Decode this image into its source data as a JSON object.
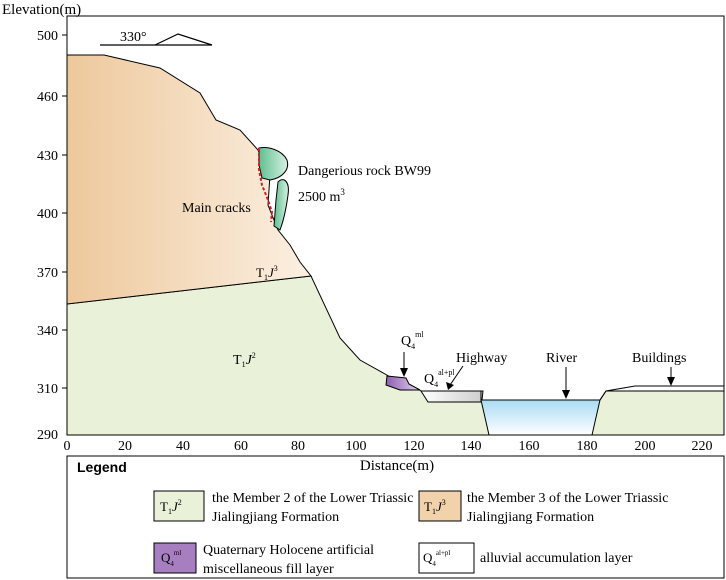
{
  "y_axis": {
    "title": "Elevation(m)",
    "ticks": [
      {
        "value": 500,
        "label": "500"
      },
      {
        "value": 460,
        "label": "460"
      },
      {
        "value": 430,
        "label": "430"
      },
      {
        "value": 400,
        "label": "400"
      },
      {
        "value": 370,
        "label": "370"
      },
      {
        "value": 340,
        "label": "340"
      },
      {
        "value": 310,
        "label": "310"
      },
      {
        "value": 290,
        "label": "290"
      }
    ]
  },
  "x_axis": {
    "title": "Distance(m)",
    "ticks": [
      "0",
      "20",
      "40",
      "60",
      "80",
      "100",
      "120",
      "140",
      "160",
      "180",
      "200",
      "220"
    ]
  },
  "orientation": {
    "label": "330°"
  },
  "annotations": {
    "dangerous_rock": "Dangerious rock BW99",
    "volume": "2500 m³",
    "main_cracks": "Main cracks",
    "fill_label": "Q4ml",
    "alluvial_label": "Q4al+pl",
    "highway": "Highway",
    "river": "River",
    "buildings": "Buildings"
  },
  "strata_labels": {
    "member3": "T1J3",
    "member2": "T1J2"
  },
  "legend": {
    "title": "Legend",
    "items": [
      {
        "symbol": "T1J2",
        "text_line1": "the Member 2 of the Lower Triassic",
        "text_line2": "Jialingjiang Formation",
        "color": "#e9f1d9"
      },
      {
        "symbol": "T1J3",
        "text_line1": "the Member 3 of the Lower Triassic",
        "text_line2": "Jialingjiang Formation",
        "color": "#f1d2ab"
      },
      {
        "symbol": "Q4ml",
        "text_line1": "Quaternary Holocene artificial",
        "text_line2": "miscellaneous fill layer",
        "color": "#a77fc0"
      },
      {
        "symbol": "Q4al+pl",
        "text_line1": "alluvial accumulation layer",
        "text_line2": "",
        "color": "#ffffff"
      }
    ]
  },
  "colors": {
    "member2": "#e9f1d9",
    "member3": "#f1d2ab",
    "dangerous_rock": "#7cc8a2",
    "fill": "#a77fc0",
    "river_top": "#bfe3f5",
    "crack": "#d32020"
  }
}
